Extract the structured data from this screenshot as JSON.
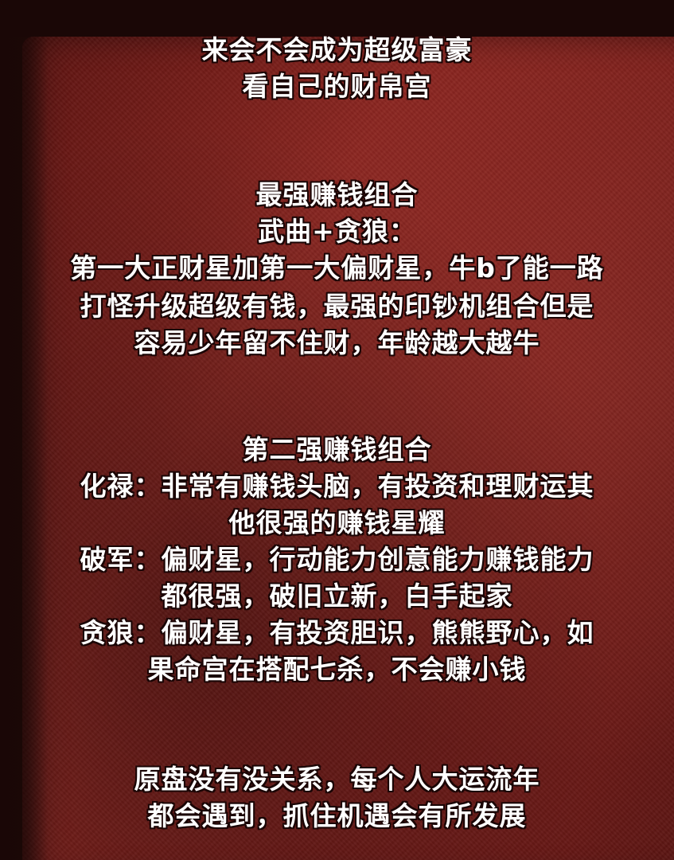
{
  "intro": {
    "line1": "来会不会成为超级富豪",
    "line2": "看自己的财帛宫"
  },
  "strongest": {
    "heading": "最强赚钱组合",
    "combo": "武曲+贪狼：",
    "desc_lines": [
      "第一大正财星加第一大偏财星，牛b了能一路",
      "打怪升级超级有钱，最强的印钞机组合但是",
      "容易少年留不住财，年龄越大越牛"
    ]
  },
  "second": {
    "heading": "第二强赚钱组合",
    "lines": [
      "化禄：非常有赚钱头脑，有投资和理财运其",
      "他很强的赚钱星耀",
      "破军：偏财星，行动能力创意能力赚钱能力",
      "都很强，破旧立新，白手起家",
      "贪狼：偏财星，有投资胆识，熊熊野心，如",
      "果命宫在搭配七杀，不会赚小钱"
    ]
  },
  "closing": {
    "lines": [
      "原盘没有没关系，每个人大运流年",
      "都会遇到，抓住机遇会有所发展"
    ]
  }
}
